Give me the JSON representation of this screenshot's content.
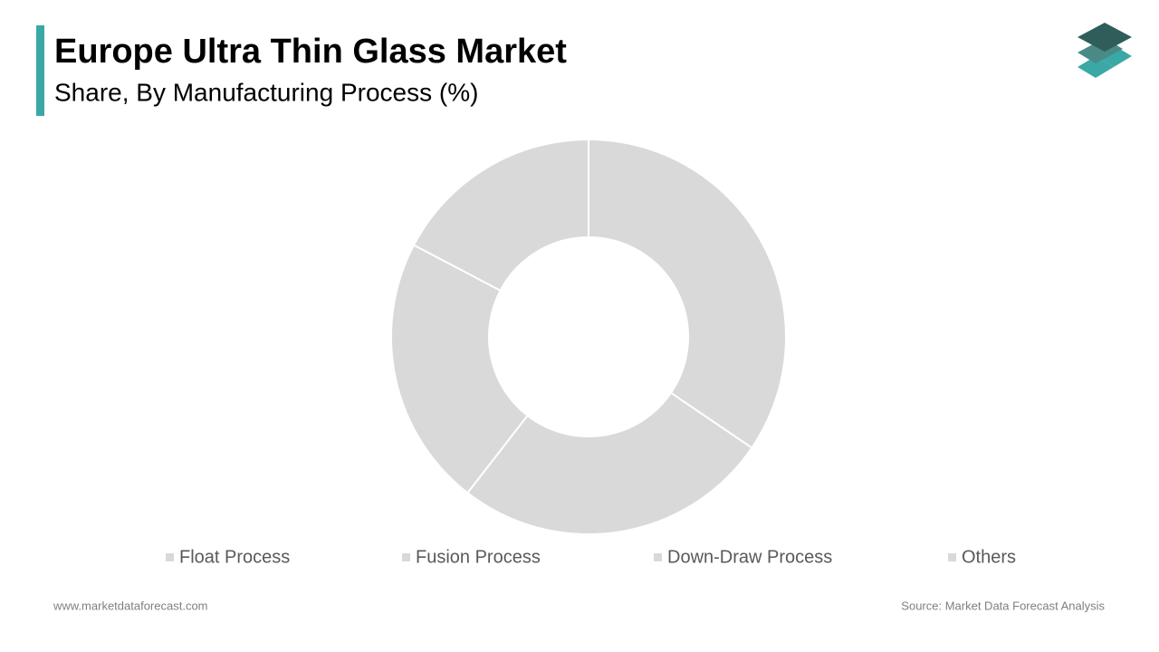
{
  "chart_data": {
    "type": "donut",
    "title": "Europe Ultra Thin Glass Market",
    "subtitle": "Share, By Manufacturing Process (%)",
    "categories": [
      "Float Process",
      "Fusion Process",
      "Down-Draw Process",
      "Others"
    ],
    "values": [
      34.5,
      26,
      22.2,
      17.3
    ],
    "colors": [
      "#d9d9d9",
      "#d9d9d9",
      "#d9d9d9",
      "#d9d9d9"
    ],
    "legend": "bottom"
  },
  "footer": {
    "website": "www.marketdataforecast.com",
    "source": "Source: Market Data Forecast Analysis"
  }
}
